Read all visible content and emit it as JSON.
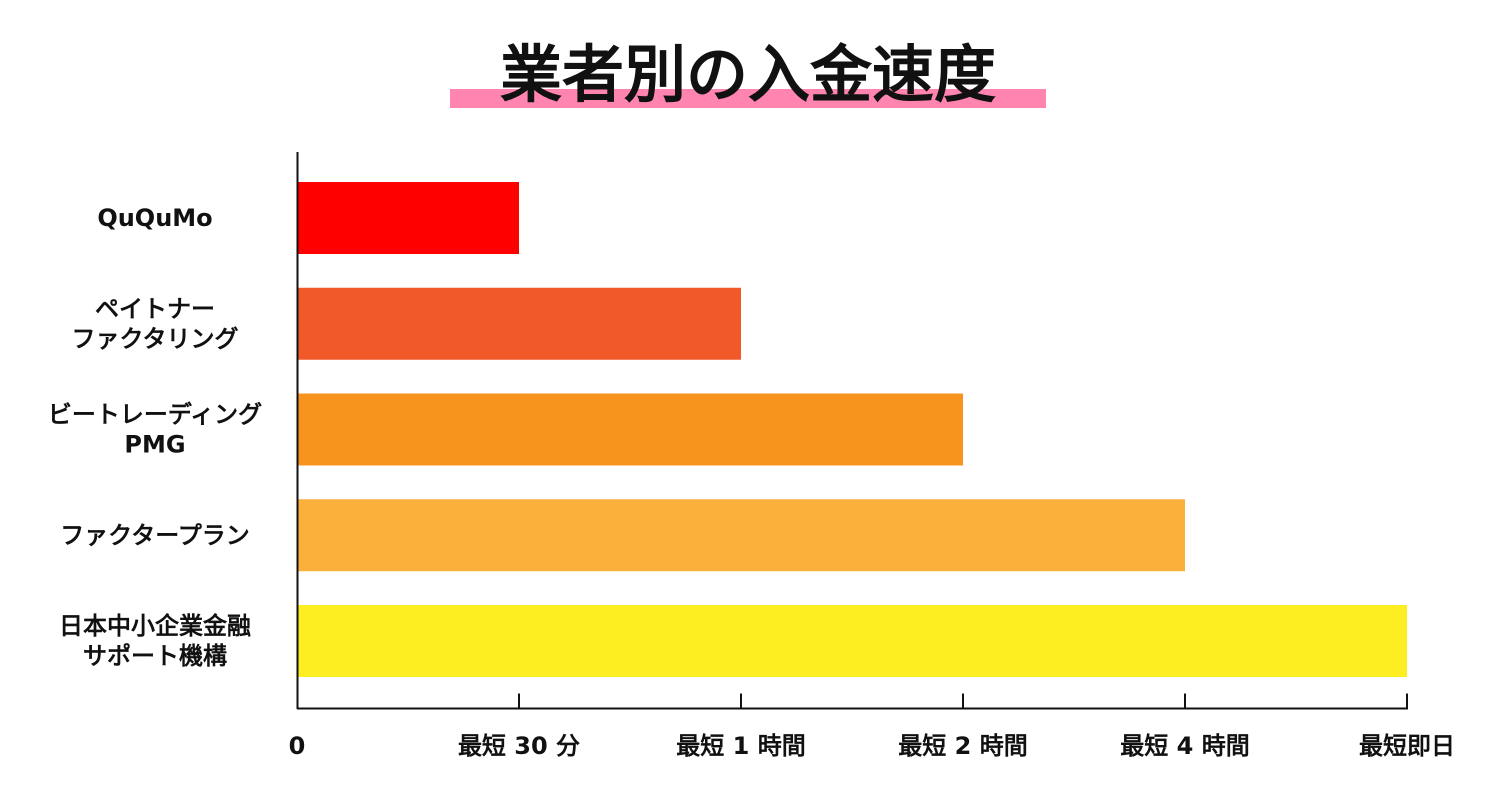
{
  "chart_data": {
    "type": "bar",
    "orientation": "horizontal",
    "title": "業者別の入金速度",
    "title_highlight_color": "#ff85b0",
    "categories": [
      [
        "QuQuMo"
      ],
      [
        "ペイトナー",
        "ファクタリング"
      ],
      [
        "ビートレーディング",
        "PMG"
      ],
      [
        "ファクタープラン"
      ],
      [
        "日本中小企業金融",
        "サポート機構"
      ]
    ],
    "values": [
      1,
      2,
      3,
      4,
      5
    ],
    "colors": [
      "#ff0000",
      "#f15a28",
      "#f7941d",
      "#fbb03b",
      "#fcee21"
    ],
    "x_ticks": [
      0,
      1,
      2,
      3,
      4,
      5
    ],
    "x_tick_labels": [
      "0",
      "最短 30 分",
      "最短 1 時間",
      "最短 2 時間",
      "最短 4 時間",
      "最短即日"
    ],
    "xlim": [
      0,
      5
    ],
    "grid": false,
    "legend": "none"
  }
}
